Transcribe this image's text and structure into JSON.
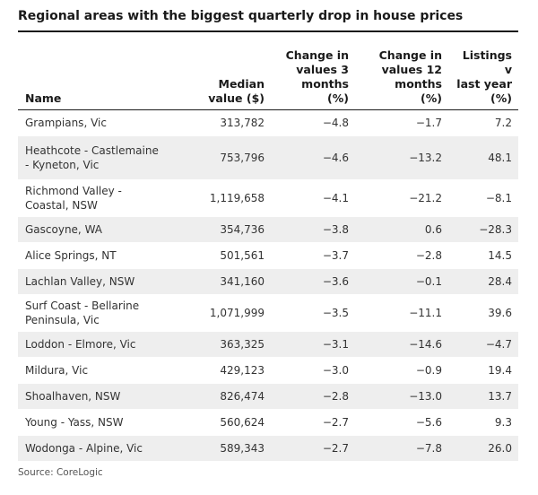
{
  "title": "Regional areas with the biggest quarterly drop in house prices",
  "table": {
    "headers": {
      "name": "Name",
      "median_l1": "Median",
      "median_l2": "value ($)",
      "chg3_l1": "Change in",
      "chg3_l2": "values 3",
      "chg3_l3": "months",
      "chg3_l4": "(%)",
      "chg12_l1": "Change in",
      "chg12_l2": "values 12",
      "chg12_l3": "months",
      "chg12_l4": "(%)",
      "list_l1": "Listings v",
      "list_l2": "last year",
      "list_l3": "(%)"
    },
    "rows": [
      {
        "name": "Grampians, Vic",
        "median": "313,782",
        "chg3": "−4.8",
        "chg12": "−1.7",
        "listings": "7.2"
      },
      {
        "name": "Heathcote - Castlemaine - Kyneton, Vic",
        "median": "753,796",
        "chg3": "−4.6",
        "chg12": "−13.2",
        "listings": "48.1"
      },
      {
        "name": "Richmond Valley - Coastal, NSW",
        "median": "1,119,658",
        "chg3": "−4.1",
        "chg12": "−21.2",
        "listings": "−8.1"
      },
      {
        "name": "Gascoyne, WA",
        "median": "354,736",
        "chg3": "−3.8",
        "chg12": "0.6",
        "listings": "−28.3"
      },
      {
        "name": "Alice Springs, NT",
        "median": "501,561",
        "chg3": "−3.7",
        "chg12": "−2.8",
        "listings": "14.5"
      },
      {
        "name": "Lachlan Valley, NSW",
        "median": "341,160",
        "chg3": "−3.6",
        "chg12": "−0.1",
        "listings": "28.4"
      },
      {
        "name": "Surf Coast - Bellarine Peninsula, Vic",
        "median": "1,071,999",
        "chg3": "−3.5",
        "chg12": "−11.1",
        "listings": "39.6"
      },
      {
        "name": "Loddon - Elmore, Vic",
        "median": "363,325",
        "chg3": "−3.1",
        "chg12": "−14.6",
        "listings": "−4.7"
      },
      {
        "name": "Mildura, Vic",
        "median": "429,123",
        "chg3": "−3.0",
        "chg12": "−0.9",
        "listings": "19.4"
      },
      {
        "name": "Shoalhaven, NSW",
        "median": "826,474",
        "chg3": "−2.8",
        "chg12": "−13.0",
        "listings": "13.7"
      },
      {
        "name": "Young - Yass, NSW",
        "median": "560,624",
        "chg3": "−2.7",
        "chg12": "−5.6",
        "listings": "9.3"
      },
      {
        "name": "Wodonga - Alpine, Vic",
        "median": "589,343",
        "chg3": "−2.7",
        "chg12": "−7.8",
        "listings": "26.0"
      }
    ]
  },
  "source": "Source: CoreLogic",
  "colors": {
    "stripe": "#eeeeee",
    "rule": "#1a1a1a",
    "text": "#333333"
  }
}
